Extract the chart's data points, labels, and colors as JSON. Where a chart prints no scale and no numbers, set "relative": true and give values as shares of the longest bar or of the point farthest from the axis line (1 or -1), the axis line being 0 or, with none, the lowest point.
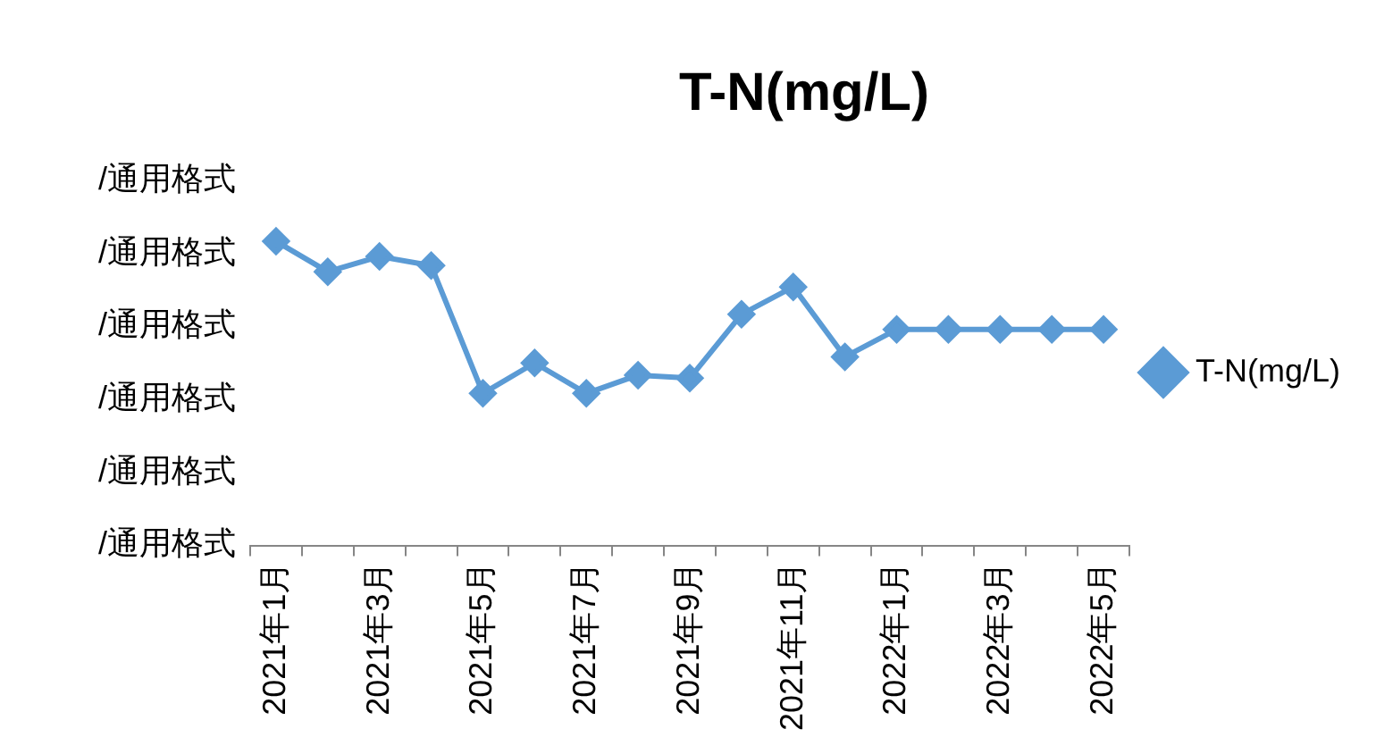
{
  "chart_data": {
    "type": "line",
    "title": "T-N(mg/L)",
    "categories": [
      "2021年1月",
      null,
      "2021年3月",
      null,
      "2021年5月",
      null,
      "2021年7月",
      null,
      "2021年9月",
      null,
      "2021年11月",
      null,
      "2022年1月",
      null,
      "2022年3月",
      null,
      "2022年5月"
    ],
    "series": [
      {
        "name": "T-N(mg/L)",
        "color": "#5b9bd5",
        "values": [
          1,
          0.9,
          0.95,
          0.92,
          0.5,
          0.6,
          0.5,
          0.56,
          0.55,
          0.76,
          0.85,
          0.62,
          0.71,
          0.71,
          0.71,
          0.71,
          0.71
        ]
      }
    ],
    "relative": true,
    "annotations": [
      "/通用格式",
      "/通用格式",
      "/通用格式",
      "/通用格式",
      "/通用格式",
      "/通用格式"
    ],
    "legend": "right",
    "marker": "diamond",
    "line_style": "solid"
  }
}
